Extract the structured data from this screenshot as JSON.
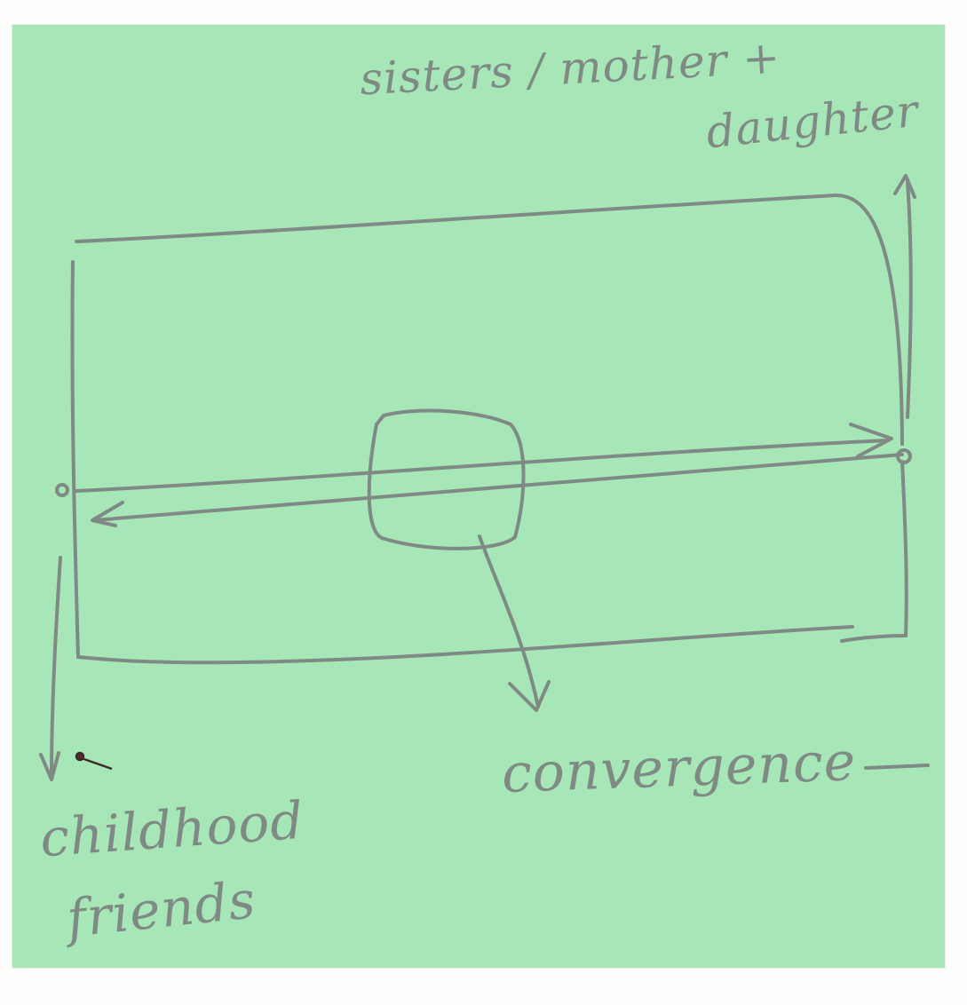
{
  "labels": {
    "top_line1": "sisters / mother +",
    "top_line2": "daughter",
    "bottom_left_line1": "childhood",
    "bottom_left_line2": "friends",
    "center_bottom": "convergence"
  },
  "colors": {
    "note": "#a6e6b7",
    "pencil": "#7f8a84"
  }
}
